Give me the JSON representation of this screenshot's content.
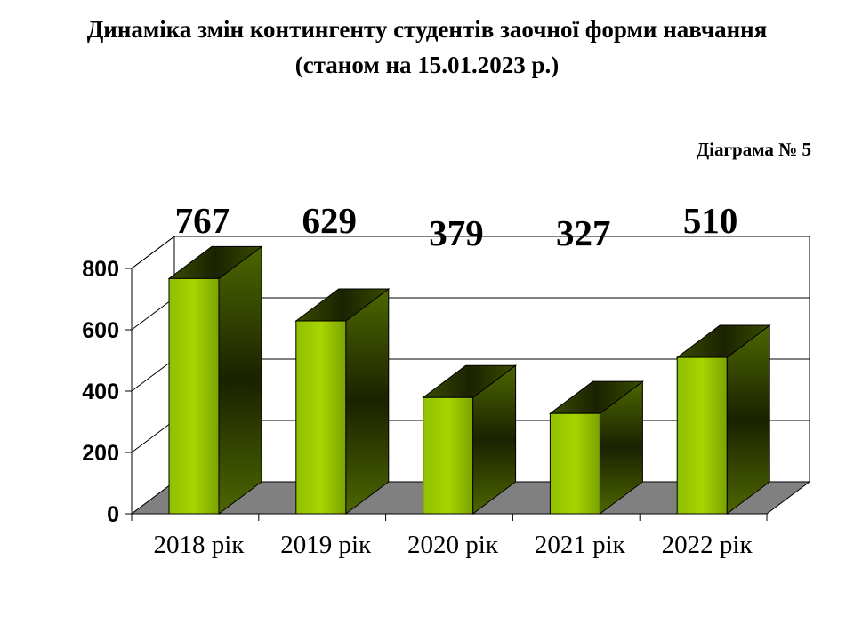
{
  "chart_data": {
    "type": "bar",
    "title": "Динаміка змін контингенту студентів заочної форми навчання",
    "subtitle": "(станом на 15.01.2023 р.)",
    "annotation": "Діаграма  № 5",
    "categories": [
      "2018  рік",
      "2019  рік",
      "2020  рік",
      "2021  рік",
      "2022  рік"
    ],
    "values": [
      767,
      629,
      379,
      327,
      510
    ],
    "data_labels": [
      "767",
      "629",
      "379",
      "327",
      "510"
    ],
    "ylim": [
      0,
      800
    ],
    "yticks": [
      "0",
      "200",
      "400",
      "600",
      "800"
    ],
    "xlabel": "",
    "ylabel": "",
    "grid": true,
    "colors": {
      "bar_light": "#99cc00",
      "bar_mid": "#4d6600",
      "bar_dark": "#1a2200",
      "floor": "#808080",
      "wall": "#ffffff"
    }
  }
}
